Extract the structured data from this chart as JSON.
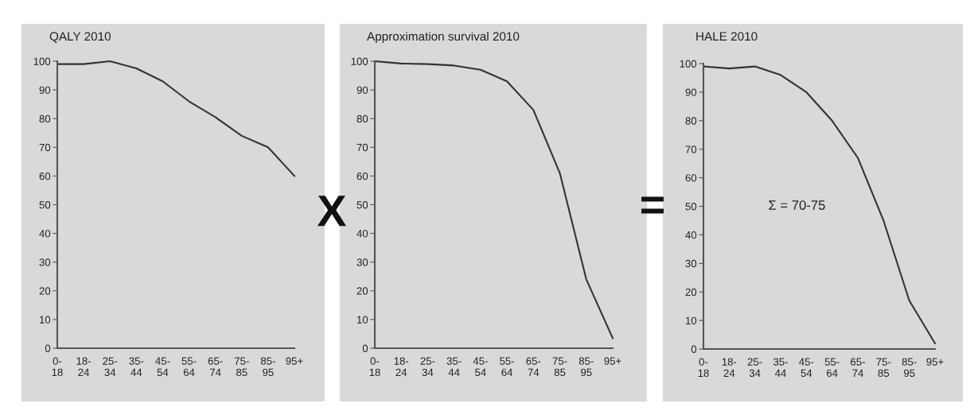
{
  "chart_data": [
    {
      "type": "line",
      "title": "QALY 2010",
      "categories": [
        "0-\n18",
        "18-\n24",
        "25-\n34",
        "35-\n44",
        "45-\n54",
        "55-\n64",
        "65-\n74",
        "75-\n85",
        "85-\n95",
        "95+"
      ],
      "series": [
        {
          "color": "#333333",
          "values": [
            99,
            99,
            100,
            97.5,
            93,
            86,
            80.5,
            74,
            70,
            60
          ]
        }
      ],
      "ylim": [
        0,
        100
      ],
      "yticks": [
        0,
        10,
        20,
        30,
        40,
        50,
        60,
        70,
        80,
        90,
        100
      ],
      "grid": false,
      "marker": "none",
      "line_style": "solid",
      "annotations": [
        "X"
      ]
    },
    {
      "type": "line",
      "title": "Approximation survival 2010",
      "categories": [
        "0-\n18",
        "18-\n24",
        "25-\n34",
        "35-\n44",
        "45-\n54",
        "55-\n64",
        "65-\n74",
        "75-\n85",
        "85-\n95",
        "95+"
      ],
      "series": [
        {
          "color": "#333333",
          "values": [
            100,
            99.2,
            99,
            98.5,
            97,
            93,
            83,
            61,
            24,
            3.5
          ]
        }
      ],
      "ylim": [
        0,
        100
      ],
      "yticks": [
        0,
        10,
        20,
        30,
        40,
        50,
        60,
        70,
        80,
        90,
        100
      ],
      "grid": false,
      "marker": "none",
      "line_style": "solid",
      "annotations": [
        "="
      ]
    },
    {
      "type": "line",
      "title": "HALE 2010",
      "categories": [
        "0-\n18",
        "18-\n24",
        "25-\n34",
        "35-\n44",
        "45-\n54",
        "55-\n64",
        "65-\n74",
        "75-\n85",
        "85-\n95",
        "95+"
      ],
      "series": [
        {
          "color": "#333333",
          "values": [
            99,
            98.3,
            99,
            96,
            90,
            80,
            67,
            45,
            17,
            2
          ]
        }
      ],
      "ylim": [
        0,
        100
      ],
      "yticks": [
        0,
        10,
        20,
        30,
        40,
        50,
        60,
        70,
        80,
        90,
        100
      ],
      "grid": false,
      "marker": "none",
      "line_style": "solid",
      "annotations": [
        "Σ = 70-75"
      ]
    }
  ]
}
